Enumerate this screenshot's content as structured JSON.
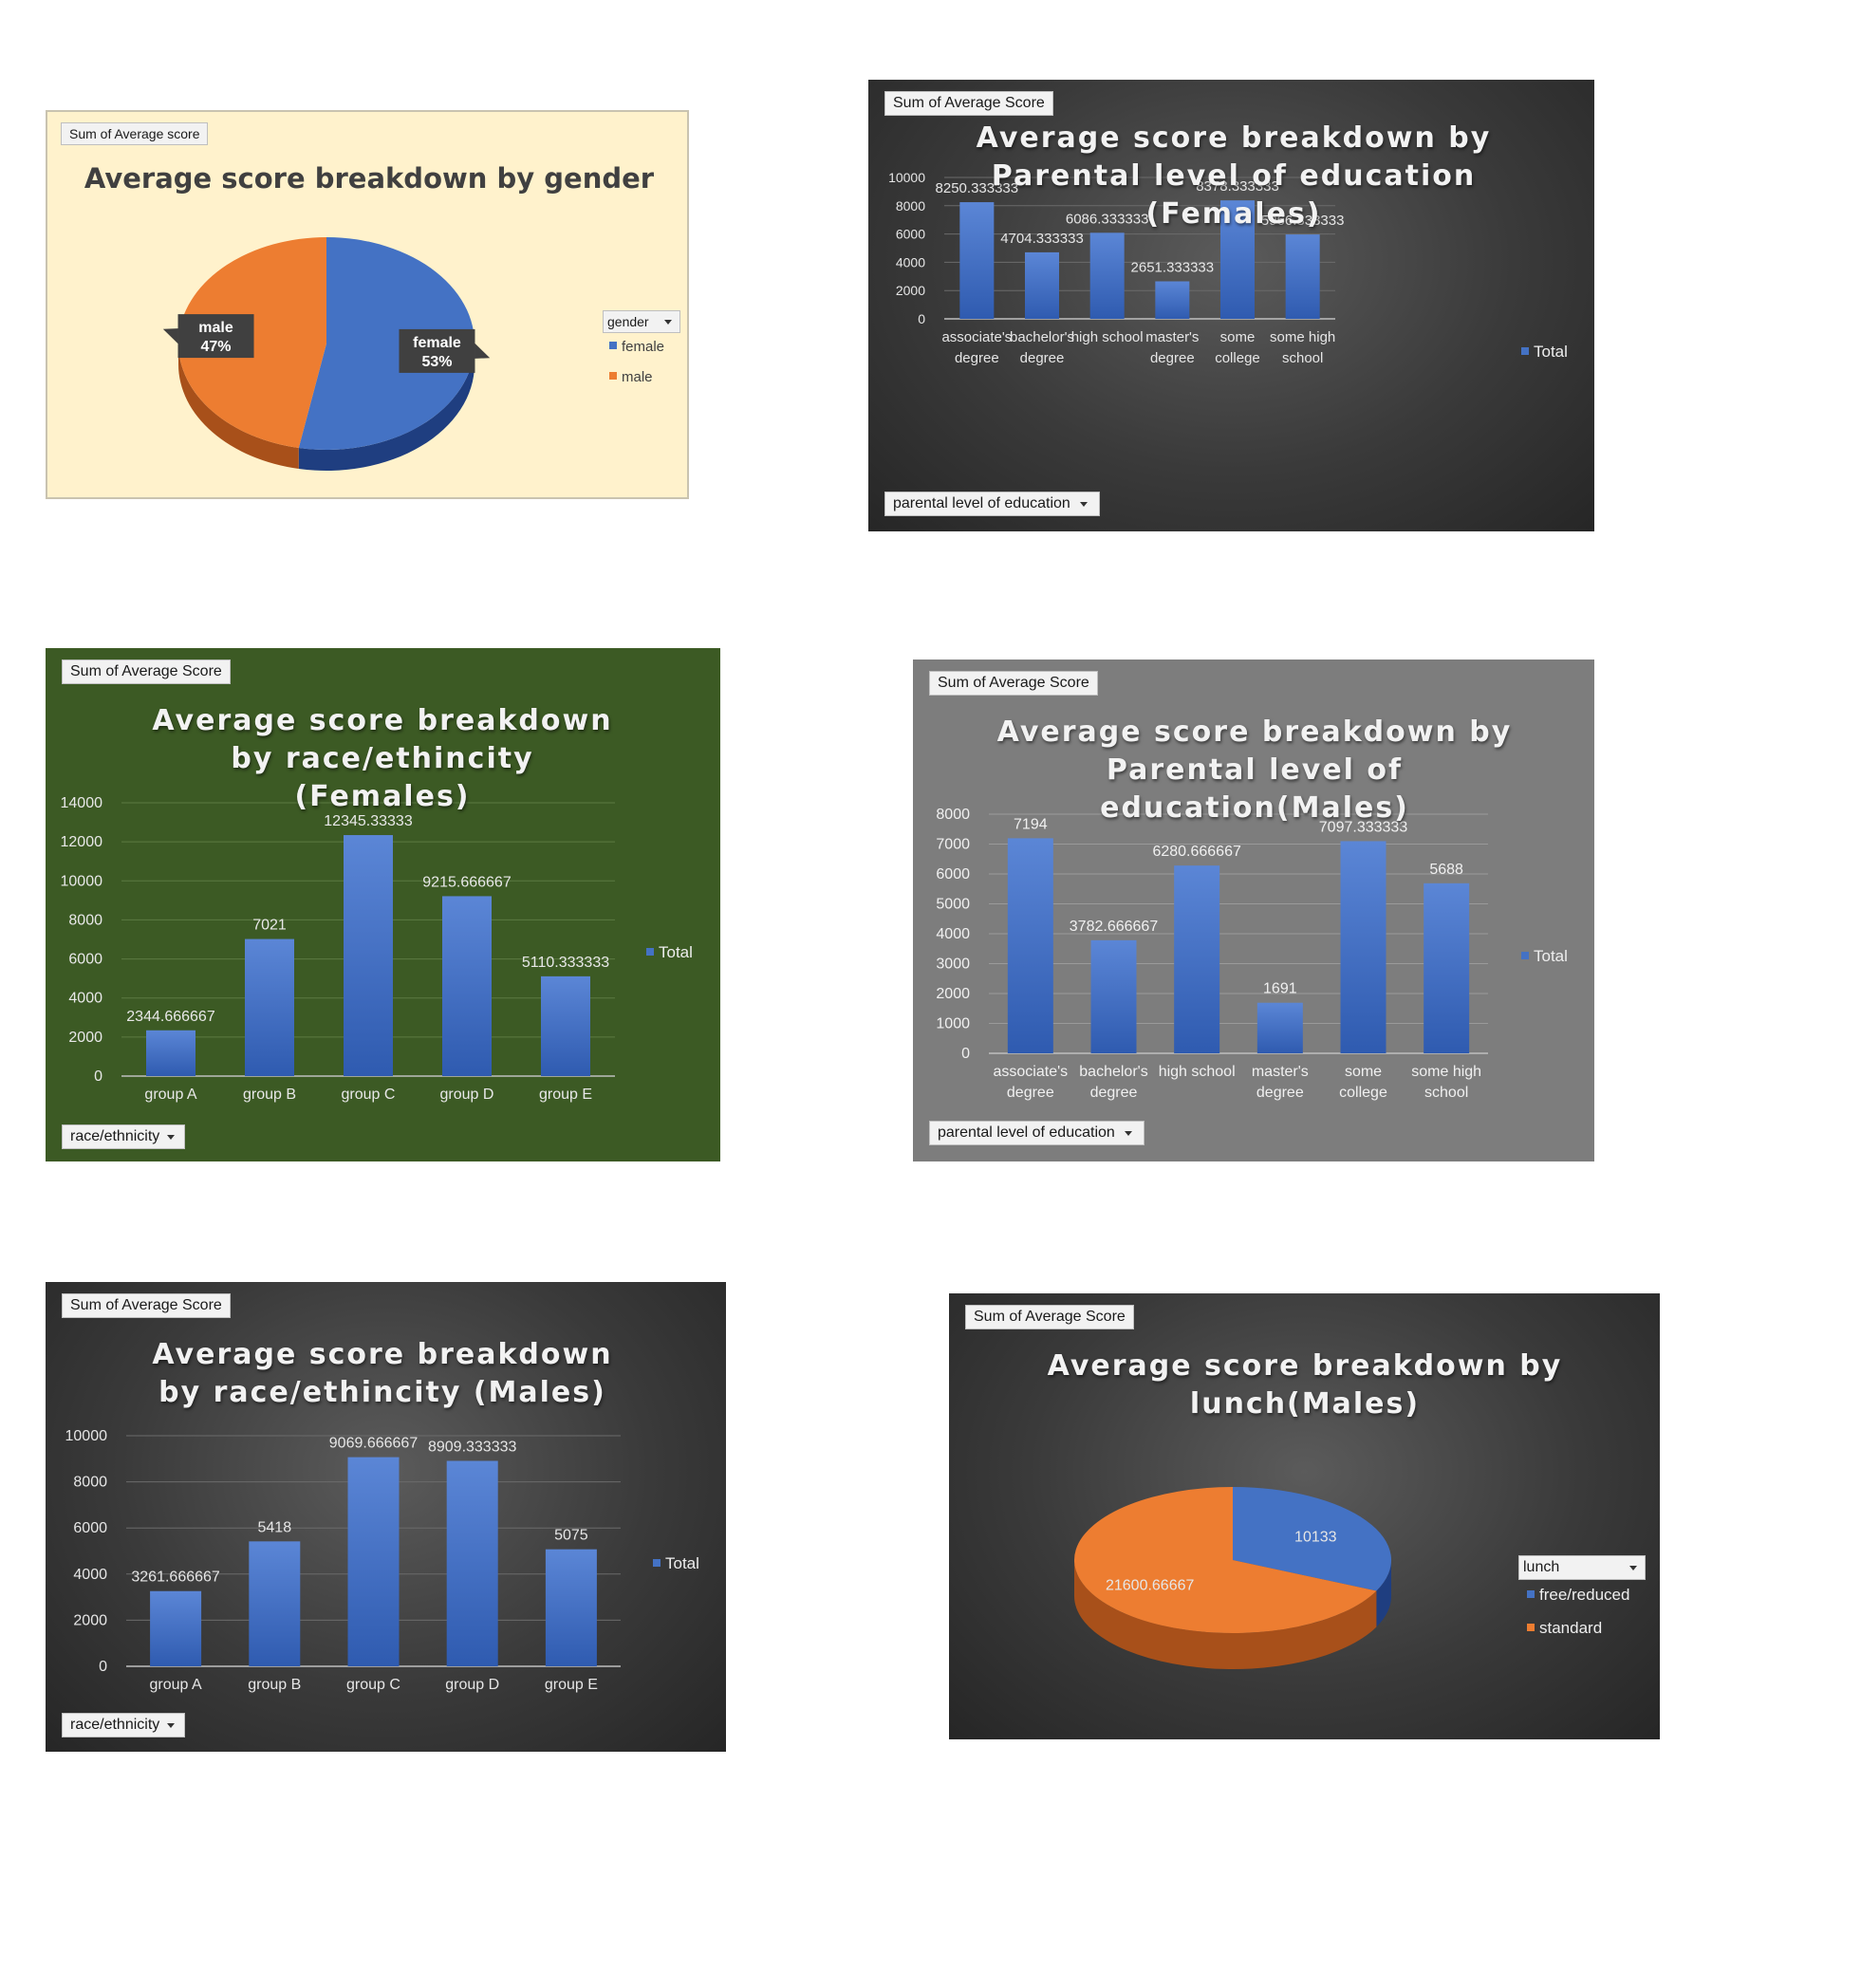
{
  "colors": {
    "bar": "#4472c4",
    "female": "#4472c4",
    "male": "#ed7d31"
  },
  "chart_data": [
    {
      "id": "gender",
      "type": "pie",
      "title": "Average score breakdown by gender",
      "field_button": "Sum of Average score",
      "legend_field": "gender",
      "categories": [
        "female",
        "male"
      ],
      "values": [
        53,
        47
      ],
      "labels": [
        "female\n53%",
        "male\n47%"
      ],
      "legend": "right"
    },
    {
      "id": "edu_female",
      "type": "bar",
      "title": "Average score breakdown by Parental level of education (Females)",
      "field_button": "Sum of Average Score",
      "axis_field": "parental level of education",
      "categories": [
        "associate's degree",
        "bachelor's degree",
        "high school",
        "master's degree",
        "some college",
        "some high school"
      ],
      "series": [
        {
          "name": "Total",
          "values": [
            8250.333333,
            4704.333333,
            6086.333333,
            2651.333333,
            8378.333333,
            5966.333333
          ]
        }
      ],
      "data_labels": [
        "8250.333333",
        "4704.333333",
        "6086.333333",
        "2651.333333",
        "8378.333333",
        "5966.333333"
      ],
      "ylim": [
        0,
        10000
      ],
      "yticks": [
        0,
        2000,
        4000,
        6000,
        8000,
        10000
      ],
      "grid": true,
      "legend": "right"
    },
    {
      "id": "race_female",
      "type": "bar",
      "title": "Average score breakdown by race/ethincity (Females)",
      "field_button": "Sum of Average Score",
      "axis_field": "race/ethnicity",
      "categories": [
        "group A",
        "group B",
        "group C",
        "group D",
        "group E"
      ],
      "series": [
        {
          "name": "Total",
          "values": [
            2344.666667,
            7021,
            12345.33333,
            9215.666667,
            5110.333333
          ]
        }
      ],
      "data_labels": [
        "2344.666667",
        "7021",
        "12345.33333",
        "9215.666667",
        "5110.333333"
      ],
      "ylim": [
        0,
        14000
      ],
      "yticks": [
        0,
        2000,
        4000,
        6000,
        8000,
        10000,
        12000,
        14000
      ],
      "grid": true,
      "legend": "right"
    },
    {
      "id": "edu_male",
      "type": "bar",
      "title": "Average score breakdown by Parental level of education(Males)",
      "field_button": "Sum of Average Score",
      "axis_field": "parental level of education",
      "categories": [
        "associate's degree",
        "bachelor's degree",
        "high school",
        "master's degree",
        "some college",
        "some high school"
      ],
      "series": [
        {
          "name": "Total",
          "values": [
            7194,
            3782.666667,
            6280.666667,
            1691,
            7097.333333,
            5688
          ]
        }
      ],
      "data_labels": [
        "7194",
        "3782.666667",
        "6280.666667",
        "1691",
        "7097.333333",
        "5688"
      ],
      "ylim": [
        0,
        8000
      ],
      "yticks": [
        0,
        1000,
        2000,
        3000,
        4000,
        5000,
        6000,
        7000,
        8000
      ],
      "grid": true,
      "legend": "right"
    },
    {
      "id": "race_male",
      "type": "bar",
      "title": "Average score breakdown by race/ethincity (Males)",
      "field_button": "Sum of Average Score",
      "axis_field": "race/ethnicity",
      "categories": [
        "group A",
        "group B",
        "group C",
        "group D",
        "group E"
      ],
      "series": [
        {
          "name": "Total",
          "values": [
            3261.666667,
            5418,
            9069.666667,
            8909.333333,
            5075
          ]
        }
      ],
      "data_labels": [
        "3261.666667",
        "5418",
        "9069.666667",
        "8909.333333",
        "5075"
      ],
      "ylim": [
        0,
        10000
      ],
      "yticks": [
        0,
        2000,
        4000,
        6000,
        8000,
        10000
      ],
      "grid": true,
      "legend": "right"
    },
    {
      "id": "lunch_male",
      "type": "pie",
      "title": "Average score breakdown by lunch(Males)",
      "field_button": "Sum of Average Score",
      "legend_field": "lunch",
      "categories": [
        "free/reduced",
        "standard"
      ],
      "values": [
        10133,
        21600.66667
      ],
      "labels": [
        "10133",
        "21600.66667"
      ],
      "legend": "right"
    }
  ]
}
